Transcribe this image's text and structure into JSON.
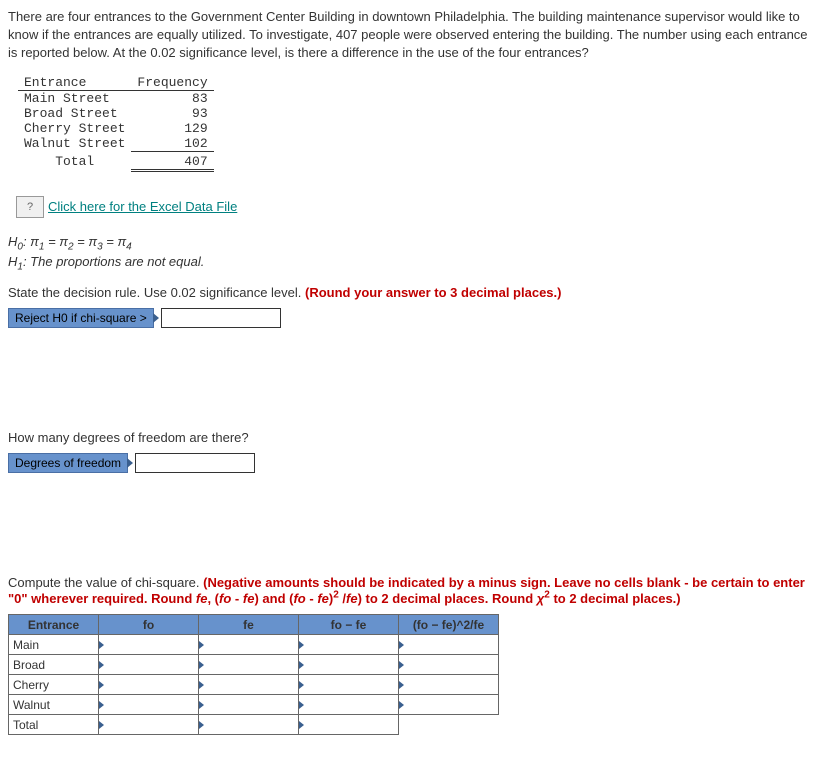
{
  "problem_text": "There are four entrances to the Government Center Building in downtown Philadelphia. The building maintenance supervisor would like to know if the entrances are equally utilized. To investigate, 407 people were observed entering the building. The number using each entrance is reported below. At the 0.02 significance level, is there a difference in the use of the four entrances?",
  "freq_table": {
    "headers": [
      "Entrance",
      "Frequency"
    ],
    "rows": [
      {
        "entrance": "Main Street",
        "freq": "83"
      },
      {
        "entrance": "Broad Street",
        "freq": "93"
      },
      {
        "entrance": "Cherry Street",
        "freq": "129"
      },
      {
        "entrance": "Walnut Street",
        "freq": "102"
      }
    ],
    "total_label": "Total",
    "total_freq": "407"
  },
  "excel_icon_text": "?",
  "excel_link_text": "Click here for the Excel Data File",
  "h0_prefix": "H",
  "h0_sub": "0",
  "h0_body": ": π",
  "h0_eq": " = π",
  "h1_prefix": "H",
  "h1_sub": "1",
  "h1_body": ": The proportions are not equal.",
  "section1": {
    "prompt": "State the decision rule. Use 0.02 significance level. ",
    "red": "(Round your answer to 3 decimal places.)",
    "input_label": "Reject H0 if chi-square >"
  },
  "section2": {
    "prompt": "How many degrees of freedom are there?",
    "input_label": "Degrees of freedom"
  },
  "section3": {
    "prompt": "Compute the value of chi-square. ",
    "red_part1": "(Negative amounts should be indicated by a minus sign. Leave no cells blank - be certain to enter \"0\" wherever required. Round ",
    "ital1": "f",
    "sub_e": "e",
    "red_part2": ", (",
    "ital_fo": "f",
    "sub_o": "o",
    "red_part3": " - ",
    "red_part4": ") and (",
    "red_part5": ")",
    "sup2": "2",
    "red_part6": " /",
    "red_part7": ") to 2 decimal places. Round ",
    "chi": "χ",
    "red_part8": " to 2 decimal places.)"
  },
  "chi_table": {
    "headers": [
      "Entrance",
      "fo",
      "fe",
      "fo − fe",
      "(fo − fe)^2/fe"
    ],
    "rows": [
      "Main",
      "Broad",
      "Cherry",
      "Walnut",
      "Total"
    ]
  }
}
